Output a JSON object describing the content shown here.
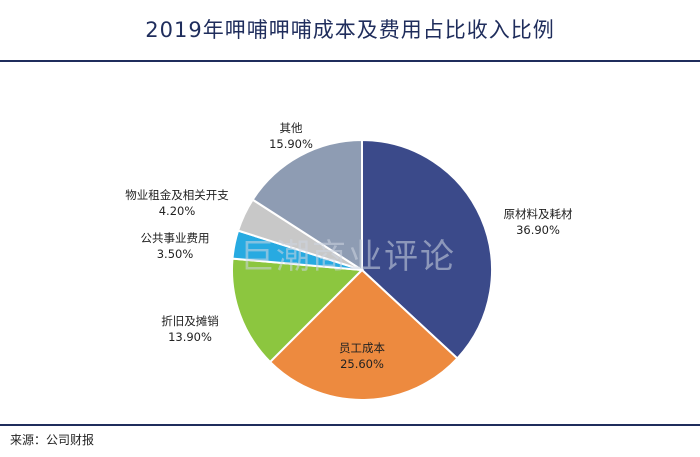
{
  "title": "2019年呷哺呷哺成本及费用占比收入比例",
  "source": "来源：公司财报",
  "watermark": "巨潮商业评论",
  "chart_data": {
    "type": "pie",
    "title": "2019年呷哺呷哺成本及费用占比收入比例",
    "start_angle_deg": 0,
    "direction": "clockwise",
    "slices": [
      {
        "name": "原材料及耗材",
        "value": 36.9,
        "label": "36.90%",
        "color": "#3b4a8a"
      },
      {
        "name": "员工成本",
        "value": 25.6,
        "label": "25.60%",
        "color": "#ed8a3f"
      },
      {
        "name": "折旧及摊销",
        "value": 13.9,
        "label": "13.90%",
        "color": "#8cc63f"
      },
      {
        "name": "公共事业费用",
        "value": 3.5,
        "label": "3.50%",
        "color": "#27aae1"
      },
      {
        "name": "物业租金及相关开支",
        "value": 4.2,
        "label": "4.20%",
        "color": "#c8c8c8"
      },
      {
        "name": "其他",
        "value": 15.9,
        "label": "15.90%",
        "color": "#8e9cb3"
      }
    ]
  }
}
